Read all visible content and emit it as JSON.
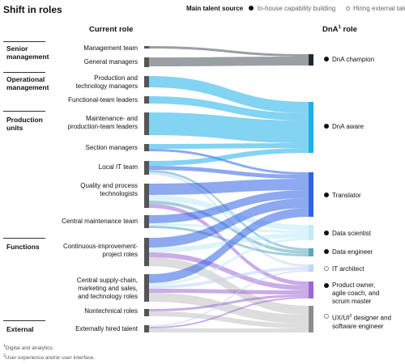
{
  "title": "Shift in roles",
  "legend": {
    "title": "Main talent source",
    "inhouse": "In-house capability building",
    "external": "Hiring external talent"
  },
  "headers": {
    "current": "Current role",
    "dna_prefix": "DnA",
    "dna_sup": "1",
    "dna_suffix": " role"
  },
  "groups": [
    {
      "key": "senior",
      "line1": "Senior",
      "line2": "management"
    },
    {
      "key": "operational",
      "line1": "Operational",
      "line2": "management"
    },
    {
      "key": "production",
      "line1": "Production",
      "line2": "units"
    },
    {
      "key": "functions",
      "line1": "Functions",
      "line2": ""
    },
    {
      "key": "external",
      "line1": "External",
      "line2": ""
    }
  ],
  "sources": [
    {
      "key": "mgmt-team",
      "line1": "Management team",
      "line2": "",
      "line3": ""
    },
    {
      "key": "general-managers",
      "line1": "General managers",
      "line2": "",
      "line3": ""
    },
    {
      "key": "prod-tech-managers",
      "line1": "Production and",
      "line2": "technology managers",
      "line3": ""
    },
    {
      "key": "functional-team-leaders",
      "line1": "Functional-team leaders",
      "line2": "",
      "line3": ""
    },
    {
      "key": "maintenance-leaders",
      "line1": "Maintenance- and",
      "line2": "production-team leaders",
      "line3": ""
    },
    {
      "key": "section-managers",
      "line1": "Section managers",
      "line2": "",
      "line3": ""
    },
    {
      "key": "local-it-team",
      "line1": "Local IT team",
      "line2": "",
      "line3": ""
    },
    {
      "key": "quality-process-tech",
      "line1": "Quality and process",
      "line2": "technologists",
      "line3": ""
    },
    {
      "key": "central-maintenance",
      "line1": "Central maintenance team",
      "line2": "",
      "line3": ""
    },
    {
      "key": "ci-project-roles",
      "line1": "Continuous-improvement-",
      "line2": "project roles",
      "line3": ""
    },
    {
      "key": "central-supply-chain",
      "line1": "Central supply-chain,",
      "line2": "marketing and sales,",
      "line3": "and technology roles"
    },
    {
      "key": "nontechnical-roles",
      "line1": "Nontechnical roles",
      "line2": "",
      "line3": ""
    },
    {
      "key": "external-talent",
      "line1": "Externally hired talent",
      "line2": "",
      "line3": ""
    }
  ],
  "targets": [
    {
      "key": "dna-champion",
      "line1": "DnA champion",
      "line2": "",
      "line3": "",
      "source": "in-house",
      "color": "#1f2a36"
    },
    {
      "key": "dna-aware",
      "line1": "DnA aware",
      "line2": "",
      "line3": "",
      "source": "in-house",
      "color": "#1eaee8"
    },
    {
      "key": "translator",
      "line1": "Translator",
      "line2": "",
      "line3": "",
      "source": "in-house",
      "color": "#2f63e4"
    },
    {
      "key": "data-scientist",
      "line1": "Data scientist",
      "line2": "",
      "line3": "",
      "source": "in-house",
      "color": "#bfeaf6"
    },
    {
      "key": "data-engineer",
      "line1": "Data engineer",
      "line2": "",
      "line3": "",
      "source": "in-house",
      "color": "#5aa8bd"
    },
    {
      "key": "it-architect",
      "line1": "IT architect",
      "line2": "",
      "line3": "",
      "source": "external",
      "color": "#c3d4fa"
    },
    {
      "key": "product-owner",
      "line1": "Product owner,",
      "line2": "agile coach, and",
      "line3": "scrum master",
      "source": "in-house",
      "color": "#9d67d6"
    },
    {
      "key": "ux-designer",
      "line1": "UX/UI",
      "line1_sup": "2",
      "line1_suffix": " designer and",
      "line2": "software engineer",
      "line3": "",
      "source": "external",
      "color": "#8d8d8d"
    }
  ],
  "footnotes": {
    "note1_sup": "1",
    "note1": "Digital and analytics.",
    "note2_sup": "2",
    "note2": "User experience and/or user interface."
  },
  "colors": {
    "node": "#555555",
    "champion": "#1f2a36",
    "aware": "#1eaee8",
    "translator": "#2f63e4",
    "scientist": "#bfeaf6",
    "engineer": "#5aa8bd",
    "architect": "#c3d4fa",
    "product": "#9d67d6",
    "ux": "#8d8d8d"
  }
}
